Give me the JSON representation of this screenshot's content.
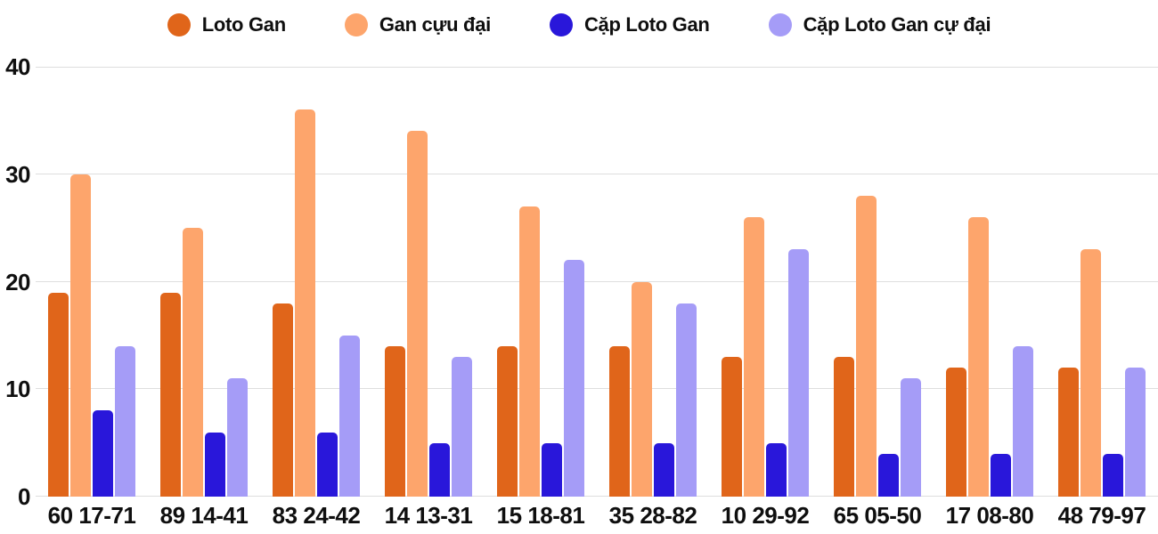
{
  "colors": {
    "loto-gan": "#E0651A",
    "gan-cuu-dai": "#FDA56C",
    "cap-loto-gan": "#2917DA",
    "cap-loto-gan-cu-dai": "#A59CF7",
    "gridline": "#DEDEDE",
    "text": "#0F0F0F",
    "background": "#FFFFFF"
  },
  "chart_data": {
    "type": "bar",
    "title": "",
    "xlabel": "",
    "ylabel": "",
    "categories": [
      "60 17-71",
      "89 14-41",
      "83 24-42",
      "14 13-31",
      "15 18-81",
      "35 28-82",
      "10 29-92",
      "65 05-50",
      "17 08-80",
      "48 79-97"
    ],
    "series": [
      {
        "name": "Loto Gan",
        "slug": "loto-gan",
        "values": [
          19,
          19,
          18,
          14,
          14,
          14,
          13,
          13,
          12,
          12
        ]
      },
      {
        "name": "Gan cựu đại",
        "slug": "gan-cuu-dai",
        "values": [
          30,
          25,
          36,
          34,
          27,
          20,
          26,
          28,
          26,
          23
        ]
      },
      {
        "name": "Cặp Loto Gan",
        "slug": "cap-loto-gan",
        "values": [
          8,
          6,
          6,
          5,
          5,
          5,
          5,
          4,
          4,
          4
        ]
      },
      {
        "name": "Cặp Loto Gan cự đại",
        "slug": "cap-loto-gan-cu-dai",
        "values": [
          14,
          11,
          15,
          13,
          22,
          18,
          23,
          11,
          14,
          12
        ]
      }
    ],
    "y_axis": {
      "min": 0,
      "max": 40,
      "ticks": [
        "40",
        "30",
        "20",
        "10",
        "0"
      ],
      "tick_values": [
        40,
        30,
        20,
        10,
        0
      ]
    },
    "grid": true,
    "legend_position": "top"
  }
}
